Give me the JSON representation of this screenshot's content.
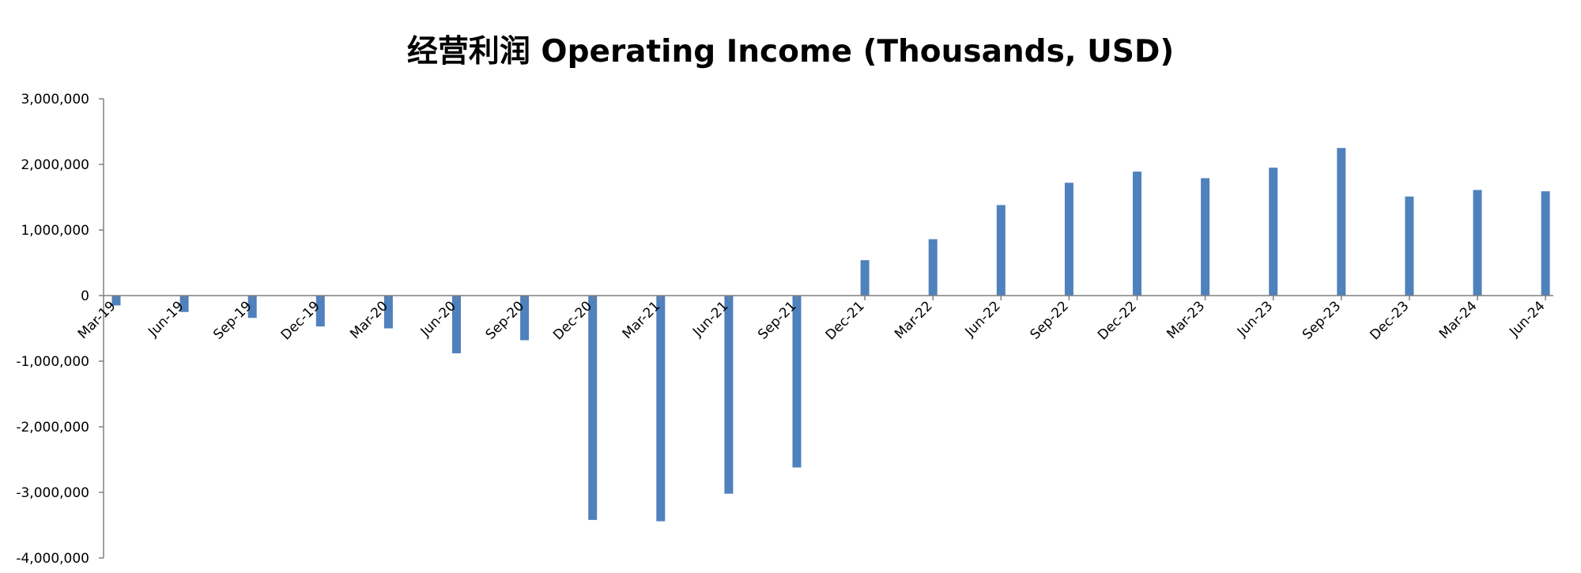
{
  "chart_data": {
    "type": "bar",
    "title": "经营利润 Operating Income (Thousands, USD)",
    "xlabel": "",
    "ylabel": "",
    "ylim": [
      -4000000,
      3000000
    ],
    "yticks": [
      3000000,
      2000000,
      1000000,
      0,
      -1000000,
      -2000000,
      -3000000,
      -4000000
    ],
    "ytick_labels": [
      "3,000,000",
      "2,000,000",
      "1,000,000",
      "0",
      "-1,000,000",
      "-2,000,000",
      "-3,000,000",
      "-4,000,000"
    ],
    "grid": false,
    "legend": "none",
    "bar_color": "#4f81bd",
    "categories": [
      "Mar-19",
      "Jun-19",
      "Sep-19",
      "Dec-19",
      "Mar-20",
      "Jun-20",
      "Sep-20",
      "Dec-20",
      "Mar-21",
      "Jun-21",
      "Sep-21",
      "Dec-21",
      "Mar-22",
      "Jun-22",
      "Sep-22",
      "Dec-22",
      "Mar-23",
      "Jun-23",
      "Sep-23",
      "Dec-23",
      "Mar-24",
      "Jun-24"
    ],
    "values": [
      -150000,
      -250000,
      -340000,
      -470000,
      -500000,
      -880000,
      -680000,
      -3420000,
      -3440000,
      -3020000,
      -2620000,
      540000,
      860000,
      1380000,
      1720000,
      1890000,
      1790000,
      1950000,
      2250000,
      1510000,
      1610000,
      1590000
    ]
  }
}
